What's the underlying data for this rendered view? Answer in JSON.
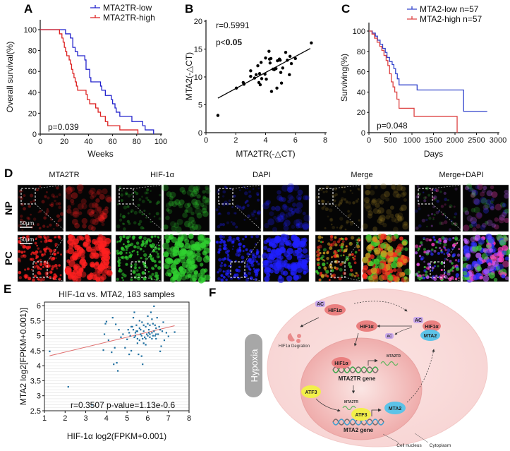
{
  "panel_labels": {
    "A": "A",
    "B": "B",
    "C": "C",
    "D": "D",
    "E": "E",
    "F": "F"
  },
  "chart_data": [
    {
      "id": "A",
      "type": "line",
      "subtype": "kaplan-meier",
      "xlabel": "Weeks",
      "ylabel": "Overall survival(%)",
      "xlim": [
        0,
        100
      ],
      "ylim": [
        0,
        100
      ],
      "xticks": [
        0,
        20,
        40,
        60,
        80,
        100
      ],
      "yticks": [
        0,
        20,
        40,
        60,
        80,
        100
      ],
      "annotation": "p=0.039",
      "legend_position": "top-right",
      "series": [
        {
          "name": "MTA2TR-low",
          "color": "#2222cc",
          "points": [
            [
              0,
              100
            ],
            [
              21,
              96
            ],
            [
              25,
              92
            ],
            [
              27,
              83
            ],
            [
              29,
              79
            ],
            [
              31,
              75
            ],
            [
              37,
              71
            ],
            [
              38,
              62
            ],
            [
              41,
              54
            ],
            [
              42,
              50
            ],
            [
              50,
              46
            ],
            [
              51,
              42
            ],
            [
              54,
              37
            ],
            [
              59,
              33
            ],
            [
              60,
              29
            ],
            [
              62,
              25
            ],
            [
              63,
              21
            ],
            [
              66,
              17
            ],
            [
              76,
              12
            ],
            [
              85,
              8
            ],
            [
              87,
              4
            ],
            [
              94,
              0
            ]
          ]
        },
        {
          "name": "MTA2TR-high",
          "color": "#dd2222",
          "points": [
            [
              0,
              100
            ],
            [
              16,
              96
            ],
            [
              18,
              92
            ],
            [
              19,
              88
            ],
            [
              20,
              83
            ],
            [
              21,
              79
            ],
            [
              22,
              75
            ],
            [
              24,
              71
            ],
            [
              25,
              67
            ],
            [
              26,
              62
            ],
            [
              27,
              58
            ],
            [
              28,
              54
            ],
            [
              29,
              50
            ],
            [
              30,
              46
            ],
            [
              31,
              42
            ],
            [
              38,
              38
            ],
            [
              39,
              33
            ],
            [
              41,
              29
            ],
            [
              46,
              25
            ],
            [
              48,
              21
            ],
            [
              50,
              17
            ],
            [
              54,
              12
            ],
            [
              56,
              8
            ],
            [
              66,
              4
            ],
            [
              81,
              0
            ]
          ]
        }
      ]
    },
    {
      "id": "B",
      "type": "scatter",
      "xlabel": "MTA2TR(-△CT)",
      "ylabel": "MTA2(-△CT)",
      "xlim": [
        0,
        8
      ],
      "ylim": [
        0,
        20
      ],
      "xticks": [
        0,
        2,
        4,
        6,
        8
      ],
      "yticks": [
        0,
        5,
        10,
        15,
        20
      ],
      "annotations": [
        "r=0.5991",
        "p<",
        "0.05"
      ],
      "fit_line": [
        [
          0.8,
          6.2
        ],
        [
          7.0,
          15.1
        ]
      ],
      "color": "#000000",
      "points": [
        [
          0.8,
          3.1
        ],
        [
          2.04,
          8.0
        ],
        [
          2.5,
          9.0
        ],
        [
          2.55,
          8.7
        ],
        [
          3.0,
          11.1
        ],
        [
          3.0,
          10.1
        ],
        [
          3.26,
          9.8
        ],
        [
          3.37,
          10.4
        ],
        [
          3.48,
          12.0
        ],
        [
          3.55,
          9.0
        ],
        [
          3.6,
          10.6
        ],
        [
          3.64,
          8.6
        ],
        [
          3.7,
          12.6
        ],
        [
          3.74,
          9.7
        ],
        [
          3.96,
          10.5
        ],
        [
          4.0,
          13.4
        ],
        [
          4.05,
          9.6
        ],
        [
          4.23,
          14.6
        ],
        [
          4.27,
          13.2
        ],
        [
          4.3,
          12.5
        ],
        [
          4.36,
          13.3
        ],
        [
          4.4,
          7.4
        ],
        [
          4.5,
          11.4
        ],
        [
          4.58,
          11.3
        ],
        [
          4.7,
          11.5
        ],
        [
          4.76,
          8.0
        ],
        [
          4.8,
          12.9
        ],
        [
          4.93,
          13.2
        ],
        [
          4.98,
          13.0
        ],
        [
          5.02,
          10.8
        ],
        [
          5.07,
          8.9
        ],
        [
          5.15,
          11.6
        ],
        [
          5.35,
          14.4
        ],
        [
          5.46,
          13.0
        ],
        [
          5.6,
          10.4
        ],
        [
          5.64,
          13.7
        ],
        [
          5.73,
          12.4
        ],
        [
          6.0,
          13.3
        ],
        [
          7.07,
          16.1
        ]
      ]
    },
    {
      "id": "C",
      "type": "line",
      "subtype": "kaplan-meier",
      "xlabel": "Days",
      "ylabel": "Surviving(%)",
      "xlim": [
        0,
        3000
      ],
      "ylim": [
        0,
        100
      ],
      "xticks": [
        0,
        500,
        1000,
        1500,
        2000,
        2500,
        3000
      ],
      "yticks": [
        0,
        20,
        40,
        60,
        80,
        100
      ],
      "annotation": "p=0.048",
      "legend_position": "top-right",
      "series": [
        {
          "name": "MTA2-low n=57",
          "color": "#3344cc",
          "points": [
            [
              0,
              100
            ],
            [
              80,
              98
            ],
            [
              150,
              95
            ],
            [
              200,
              91
            ],
            [
              260,
              87
            ],
            [
              320,
              83
            ],
            [
              380,
              79
            ],
            [
              420,
              74
            ],
            [
              480,
              70
            ],
            [
              540,
              67
            ],
            [
              580,
              63
            ],
            [
              620,
              58
            ],
            [
              660,
              53
            ],
            [
              700,
              47
            ],
            [
              1120,
              42
            ],
            [
              2200,
              21
            ],
            [
              2750,
              21
            ]
          ]
        },
        {
          "name": "MTA2-high n=57",
          "color": "#dd4444",
          "points": [
            [
              0,
              100
            ],
            [
              70,
              97
            ],
            [
              130,
              93
            ],
            [
              190,
              89
            ],
            [
              250,
              85
            ],
            [
              300,
              81
            ],
            [
              350,
              76
            ],
            [
              400,
              71
            ],
            [
              440,
              66
            ],
            [
              480,
              58
            ],
            [
              520,
              50
            ],
            [
              560,
              45
            ],
            [
              600,
              40
            ],
            [
              650,
              33
            ],
            [
              700,
              24
            ],
            [
              1050,
              16
            ],
            [
              2050,
              0
            ]
          ]
        }
      ]
    },
    {
      "id": "E",
      "type": "scatter",
      "title": "HIF-1α vs. MTA2, 183 samples",
      "xlabel": "HIF-1α log2(FPKM+0.001)",
      "ylabel": "MTA2 log2[FPKM+0.001)]",
      "xlim": [
        1,
        8
      ],
      "ylim": [
        2.5,
        6
      ],
      "xticks": [
        1,
        2,
        3,
        4,
        5,
        6,
        7,
        8
      ],
      "yticks": [
        2.5,
        3,
        3.5,
        4,
        4.5,
        5,
        5.5,
        6
      ],
      "yticklabels": [
        "2.5",
        "3",
        "3.5",
        "4",
        "4.5",
        "5",
        "5.5",
        "6"
      ],
      "grid": true,
      "annotation": "r=0.3507 p-value=1.13e-0.6",
      "fit_line": [
        [
          1.25,
          4.33
        ],
        [
          7.3,
          5.33
        ]
      ],
      "point_color": "#1f6fa0",
      "line_color": "#e07070",
      "points": [
        [
          1.25,
          4.48
        ],
        [
          2.15,
          3.3
        ],
        [
          3.3,
          2.7
        ],
        [
          3.85,
          4.52
        ],
        [
          3.9,
          5.05
        ],
        [
          3.95,
          5.4
        ],
        [
          4.0,
          5.47
        ],
        [
          4.1,
          4.85
        ],
        [
          4.25,
          4.45
        ],
        [
          4.3,
          5.6
        ],
        [
          4.35,
          4.05
        ],
        [
          4.4,
          4.6
        ],
        [
          4.45,
          5.38
        ],
        [
          4.5,
          4.1
        ],
        [
          4.55,
          3.83
        ],
        [
          4.6,
          5.2
        ],
        [
          4.7,
          4.95
        ],
        [
          4.8,
          5.05
        ],
        [
          4.9,
          4.6
        ],
        [
          5.0,
          4.88
        ],
        [
          5.05,
          5.2
        ],
        [
          5.1,
          4.38
        ],
        [
          5.15,
          5.0
        ],
        [
          5.2,
          4.5
        ],
        [
          5.25,
          5.3
        ],
        [
          5.3,
          5.6
        ],
        [
          5.35,
          5.78
        ],
        [
          5.4,
          5.1
        ],
        [
          5.45,
          5.35
        ],
        [
          5.5,
          4.9
        ],
        [
          5.55,
          4.38
        ],
        [
          5.6,
          5.25
        ],
        [
          5.65,
          5.05
        ],
        [
          5.7,
          4.32
        ],
        [
          5.72,
          5.45
        ],
        [
          5.75,
          4.05
        ],
        [
          5.8,
          5.15
        ],
        [
          5.85,
          4.95
        ],
        [
          5.9,
          5.3
        ],
        [
          5.95,
          5.05
        ],
        [
          6.0,
          5.65
        ],
        [
          6.05,
          5.2
        ],
        [
          6.1,
          4.95
        ],
        [
          6.15,
          5.78
        ],
        [
          6.2,
          5.1
        ],
        [
          6.25,
          5.4
        ],
        [
          6.3,
          5.98
        ],
        [
          6.35,
          5.0
        ],
        [
          6.4,
          5.25
        ],
        [
          6.45,
          5.6
        ],
        [
          6.5,
          5.05
        ],
        [
          6.55,
          5.3
        ],
        [
          6.6,
          4.48
        ],
        [
          6.65,
          4.65
        ],
        [
          6.7,
          5.15
        ],
        [
          6.75,
          5.45
        ],
        [
          6.8,
          4.85
        ],
        [
          6.9,
          5.1
        ],
        [
          7.0,
          4.98
        ],
        [
          7.3,
          5.12
        ],
        [
          5.3,
          5.2
        ],
        [
          5.4,
          5.0
        ],
        [
          5.5,
          5.15
        ],
        [
          5.6,
          4.85
        ],
        [
          5.7,
          5.0
        ],
        [
          5.8,
          4.75
        ],
        [
          5.9,
          4.9
        ],
        [
          6.0,
          5.0
        ],
        [
          6.1,
          5.35
        ],
        [
          6.2,
          4.9
        ],
        [
          6.3,
          5.15
        ],
        [
          6.4,
          5.05
        ],
        [
          5.2,
          5.3
        ],
        [
          5.6,
          5.5
        ],
        [
          6.0,
          5.4
        ],
        [
          6.2,
          5.55
        ],
        [
          5.8,
          5.35
        ],
        [
          6.4,
          4.9
        ],
        [
          6.6,
          5.2
        ],
        [
          5.5,
          4.75
        ],
        [
          5.9,
          4.7
        ],
        [
          6.1,
          5.05
        ],
        [
          5.35,
          4.95
        ],
        [
          5.65,
          5.2
        ],
        [
          6.05,
          5.1
        ],
        [
          6.25,
          5.0
        ],
        [
          5.45,
          5.15
        ],
        [
          5.75,
          4.9
        ],
        [
          6.35,
          5.35
        ],
        [
          5.1,
          5.1
        ]
      ]
    }
  ],
  "panel_d": {
    "columns": [
      "MTA2TR",
      "HIF-1α",
      "DAPI",
      "Merge",
      "Merge+DAPI"
    ],
    "rows": [
      "NP",
      "PC"
    ],
    "scale_bar": "50μm"
  },
  "panel_f": {
    "hypoxia": "Hypoxia",
    "ac": "AC",
    "hif1a": "HIF1α",
    "mta2": "MTA2",
    "atf3": "ATF3",
    "mta2tr": "MTA2TR",
    "degradation": "HIF1α Degration",
    "mta2tr_gene": "MTA2TR gene",
    "mta2_gene": "MTA2 gene",
    "cell_nucleus": "Cell nucleus",
    "cytoplasm": "Cytoplasm"
  }
}
